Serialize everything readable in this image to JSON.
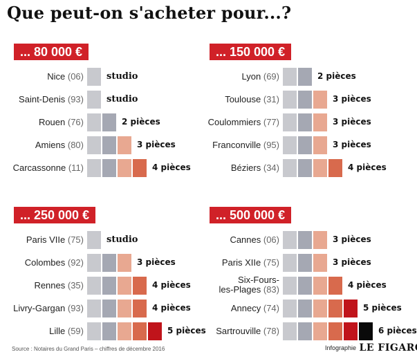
{
  "title": "Que peut-on s'acheter pour...?",
  "colors": {
    "badge": "#d02128",
    "squares": [
      "#c8c9ce",
      "#a5a8b3",
      "#e8a891",
      "#d86a4d",
      "#c0141b",
      "#0a0a0a"
    ]
  },
  "panels": [
    {
      "budget": "... 80 000 €",
      "rows": [
        {
          "city": "Nice",
          "code": "(06)",
          "squares": 1,
          "label": "studio"
        },
        {
          "city": "Saint-Denis",
          "code": "(93)",
          "squares": 1,
          "label": "studio"
        },
        {
          "city": "Rouen",
          "code": "(76)",
          "squares": 2,
          "label": "2 pièces"
        },
        {
          "city": "Amiens",
          "code": "(80)",
          "squares": 3,
          "label": "3 pièces"
        },
        {
          "city": "Carcassonne",
          "code": "(11)",
          "squares": 4,
          "label": "4 pièces"
        }
      ]
    },
    {
      "budget": "... 150 000 €",
      "rows": [
        {
          "city": "Lyon",
          "code": "(69)",
          "squares": 2,
          "label": "2 pièces"
        },
        {
          "city": "Toulouse",
          "code": "(31)",
          "squares": 3,
          "label": "3 pièces"
        },
        {
          "city": "Coulommiers",
          "code": "(77)",
          "squares": 3,
          "label": "3 pièces"
        },
        {
          "city": "Franconville",
          "code": "(95)",
          "squares": 3,
          "label": "3 pièces"
        },
        {
          "city": "Béziers",
          "code": "(34)",
          "squares": 4,
          "label": "4 pièces"
        }
      ]
    },
    {
      "budget": "... 250 000 €",
      "rows": [
        {
          "city": "Paris VIIe",
          "code": "(75)",
          "squares": 1,
          "label": "studio"
        },
        {
          "city": "Colombes",
          "code": "(92)",
          "squares": 3,
          "label": "3 pièces"
        },
        {
          "city": "Rennes",
          "code": "(35)",
          "squares": 4,
          "label": "4 pièces"
        },
        {
          "city": "Livry-Gargan",
          "code": "(93)",
          "squares": 4,
          "label": "4 pièces"
        },
        {
          "city": "Lille",
          "code": "(59)",
          "squares": 5,
          "label": "5 pièces"
        }
      ]
    },
    {
      "budget": "... 500 000 €",
      "rows": [
        {
          "city": "Cannes",
          "code": "(06)",
          "squares": 3,
          "label": "3 pièces"
        },
        {
          "city": "Paris XIIe",
          "code": "(75)",
          "squares": 3,
          "label": "3 pièces"
        },
        {
          "city": "Six-Fours-",
          "city2": "les-Plages",
          "code": "(83)",
          "squares": 4,
          "label": "4 pièces"
        },
        {
          "city": "Annecy",
          "code": "(74)",
          "squares": 5,
          "label": "5 pièces"
        },
        {
          "city": "Sartrouville",
          "code": "(78)",
          "squares": 6,
          "label": "6 pièces"
        }
      ]
    }
  ],
  "source": "Source : Notaires du Grand Paris – chiffres de décembre 2016",
  "credit": {
    "prefix": "Infographie",
    "brand": "LE FIGARO"
  }
}
